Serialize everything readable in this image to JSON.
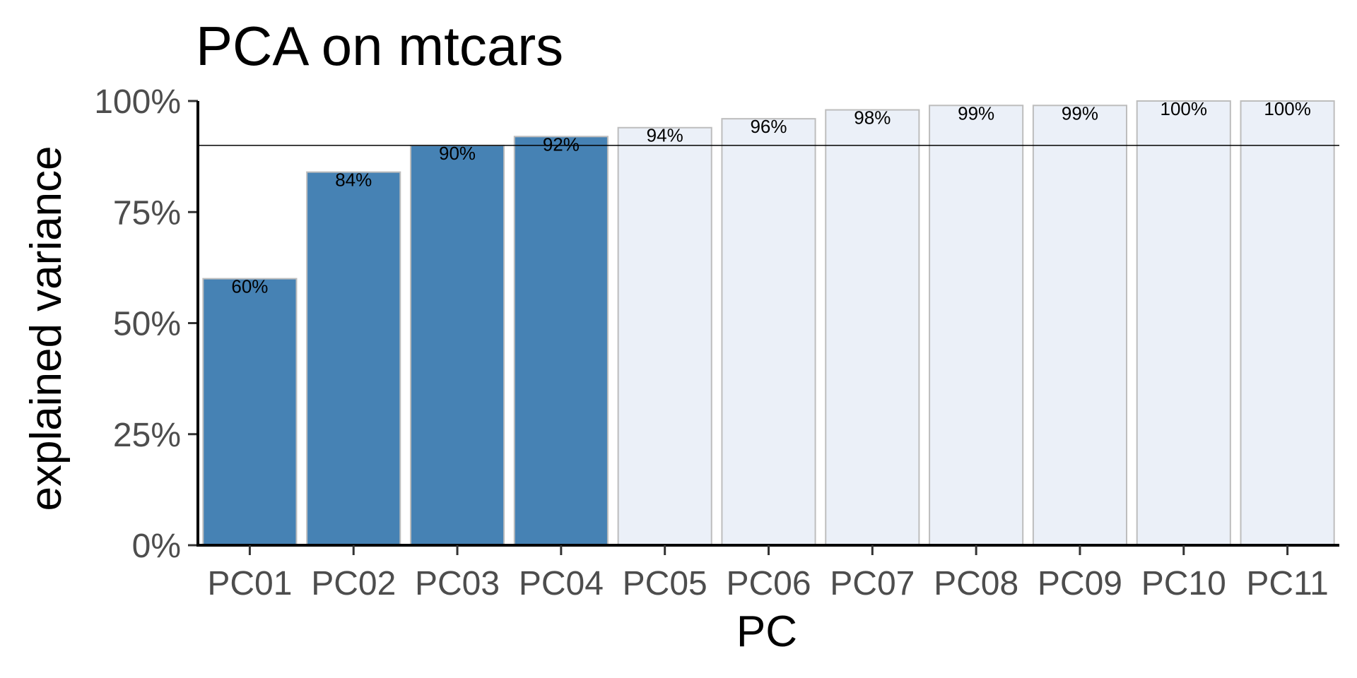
{
  "chart_data": {
    "type": "bar",
    "title": "PCA on mtcars",
    "xlabel": "PC",
    "ylabel": "explained variance",
    "categories": [
      "PC01",
      "PC02",
      "PC03",
      "PC04",
      "PC05",
      "PC06",
      "PC07",
      "PC08",
      "PC09",
      "PC10",
      "PC11"
    ],
    "values": [
      0.6,
      0.84,
      0.9,
      0.92,
      0.94,
      0.96,
      0.98,
      0.99,
      0.99,
      1.0,
      1.0
    ],
    "labels": [
      "60%",
      "84%",
      "90%",
      "92%",
      "94%",
      "96%",
      "98%",
      "99%",
      "99%",
      "100%",
      "100%"
    ],
    "highlighted_count": 4,
    "threshold": 0.9,
    "ylim": [
      0,
      1
    ],
    "yticks": [
      0,
      0.25,
      0.5,
      0.75,
      1.0
    ],
    "ytick_labels": [
      "0%",
      "25%",
      "50%",
      "75%",
      "100%"
    ],
    "grid": false,
    "legend": "none",
    "colors": {
      "highlight_fill": "#4682b4",
      "other_fill": "#ebf0f8",
      "bar_outline": "#bdbdbd",
      "threshold_line": "#000000",
      "axis": "#000000"
    }
  }
}
